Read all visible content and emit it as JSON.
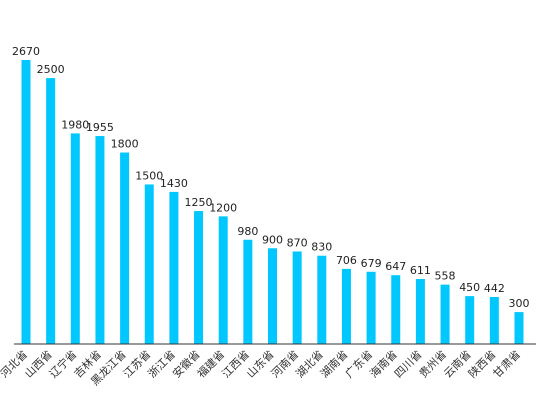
{
  "chart_data": {
    "type": "bar",
    "title": "",
    "xlabel": "",
    "ylabel": "",
    "categories": [
      "河北省",
      "山西省",
      "辽宁省",
      "吉林省",
      "黑龙江省",
      "江苏省",
      "浙江省",
      "安徽省",
      "福建省",
      "江西省",
      "山东省",
      "河南省",
      "湖北省",
      "湖南省",
      "广东省",
      "海南省",
      "四川省",
      "贵州省",
      "云南省",
      "陕西省",
      "甘肃省"
    ],
    "values": [
      2670,
      2500,
      1980,
      1955,
      1800,
      1500,
      1430,
      1250,
      1200,
      980,
      900,
      870,
      830,
      706,
      679,
      647,
      611,
      558,
      450,
      442,
      300
    ],
    "ylim": [
      0,
      2670
    ],
    "grid": false,
    "legend": "none",
    "colors": {
      "bar": "#00c8ff",
      "axis": "#333333"
    }
  }
}
